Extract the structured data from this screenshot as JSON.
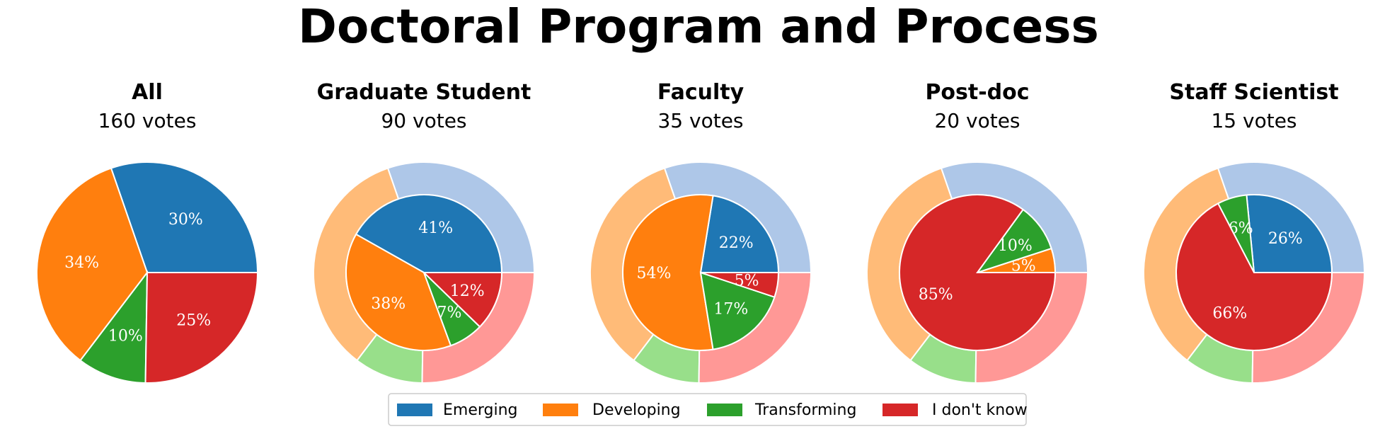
{
  "title": "Doctoral Program and Process",
  "chart_data": {
    "type": "pie",
    "title": "Doctoral Program and Process",
    "categories": [
      "Emerging",
      "Developing",
      "Transforming",
      "I don't know"
    ],
    "colors": {
      "Emerging": "#1f77b4",
      "Developing": "#ff7f0e",
      "Transforming": "#2ca02c",
      "I don't know": "#d62728"
    },
    "outer_ring_colors": {
      "Emerging": "#aec7e8",
      "Developing": "#ffbb78",
      "Transforming": "#98df8a",
      "I don't know": "#ff9896"
    },
    "legend": {
      "entries": [
        "Emerging",
        "Developing",
        "Transforming",
        "I don't know"
      ],
      "placement": "bottom-center"
    },
    "panels": [
      {
        "title": "All",
        "subtitle": "160 votes",
        "values": [
          30,
          34,
          10,
          25
        ],
        "labels": [
          "30%",
          "34%",
          "10%",
          "25%"
        ],
        "outer_reference": null
      },
      {
        "title": "Graduate Student",
        "subtitle": "90 votes",
        "values": [
          41,
          38,
          7,
          12
        ],
        "labels": [
          "41%",
          "38%",
          "7%",
          "12%"
        ],
        "outer_reference": [
          30,
          34,
          10,
          25
        ]
      },
      {
        "title": "Faculty",
        "subtitle": "35 votes",
        "values": [
          22,
          54,
          17,
          5
        ],
        "labels": [
          "22%",
          "54%",
          "17%",
          "5%"
        ],
        "outer_reference": [
          30,
          34,
          10,
          25
        ]
      },
      {
        "title": "Post-doc",
        "subtitle": "20 votes",
        "values": [
          0,
          5,
          10,
          85
        ],
        "labels": [
          "",
          "5%",
          "10%",
          "85%"
        ],
        "outer_reference": [
          30,
          34,
          10,
          25
        ]
      },
      {
        "title": "Staff Scientist",
        "subtitle": "15 votes",
        "values": [
          26,
          0,
          6,
          66
        ],
        "labels": [
          "26%",
          "",
          "6%",
          "66%"
        ],
        "outer_reference": [
          30,
          34,
          10,
          25
        ]
      }
    ]
  }
}
